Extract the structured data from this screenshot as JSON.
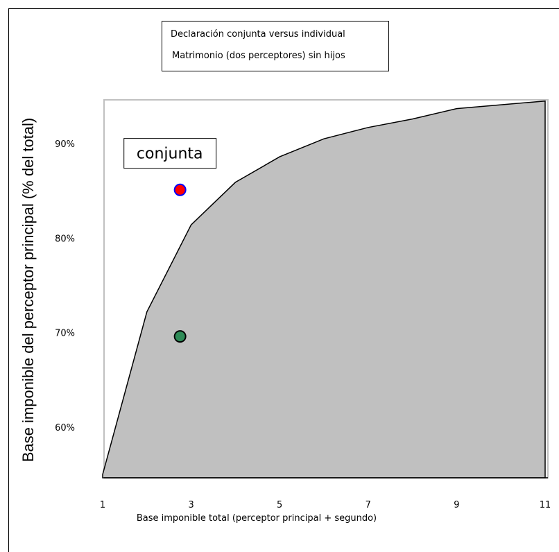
{
  "chart_data": {
    "type": "area",
    "title_lines": [
      "Declaración conjunta versus individual",
      "Matrimonio (dos perceptores) sin hijos"
    ],
    "xlabel": "Base imponible total (perceptor principal + segundo)",
    "ylabel": "Base imponible del perceptor principal (% del total)",
    "xlim": [
      1,
      11
    ],
    "ylim": [
      0.55,
      0.95
    ],
    "x_ticks": [
      "1",
      "3",
      "5",
      "7",
      "9",
      "11"
    ],
    "x_tick_values": [
      1,
      3,
      5,
      7,
      9,
      11
    ],
    "y_ticks": [
      "60%",
      "70%",
      "80%",
      "90%"
    ],
    "y_tick_values": [
      0.6,
      0.7,
      0.8,
      0.9
    ],
    "grid": false,
    "area": {
      "x": [
        1,
        2,
        3,
        4,
        5,
        6,
        7,
        8,
        9,
        10,
        11
      ],
      "y": [
        0.55,
        0.722,
        0.814,
        0.859,
        0.886,
        0.905,
        0.917,
        0.926,
        0.937,
        0.941,
        0.945
      ],
      "fill": "#c0c0c0",
      "stroke": "#000000"
    },
    "points": [
      {
        "x": 2.75,
        "y": 0.851,
        "fill": "#ff0000",
        "stroke": "#0000ff"
      },
      {
        "x": 2.75,
        "y": 0.696,
        "fill": "#2e8b57",
        "stroke": "#000000"
      }
    ],
    "annotation": {
      "text": "conjunta",
      "x": 2.5,
      "y": 0.89
    }
  }
}
